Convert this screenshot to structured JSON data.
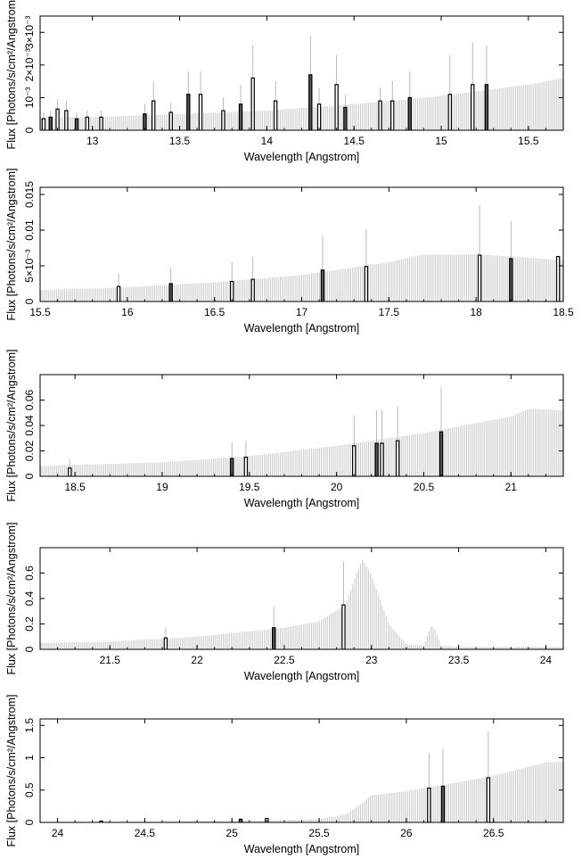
{
  "chart_data": [
    {
      "type": "bar",
      "xlabel": "Wavelength [Angstrom]",
      "ylabel": "Flux [Photons/s/cm²/Angstrom]",
      "xlim": [
        12.7,
        15.7
      ],
      "ylim": [
        0,
        0.0035
      ],
      "xticks": [
        13,
        13.5,
        14,
        14.5,
        15,
        15.5
      ],
      "xtick_labels": [
        "13",
        "13.5",
        "14",
        "14.5",
        "15",
        "15.5"
      ],
      "yticks": [
        0,
        0.001,
        0.002,
        0.003
      ],
      "ytick_labels": [
        "0",
        "10⁻³",
        "2×10⁻³",
        "3×10⁻³"
      ],
      "model": {
        "x": [
          12.7,
          13.0,
          13.5,
          14.0,
          14.5,
          15.0,
          15.5,
          15.7
        ],
        "y": [
          0.0004,
          0.0004,
          0.0005,
          0.0006,
          0.0008,
          0.00105,
          0.0014,
          0.0016
        ]
      },
      "observed": [
        {
          "x": 12.72,
          "y": 0.00035,
          "err": 0.0002
        },
        {
          "x": 12.76,
          "y": 0.0004,
          "err": 0.0002
        },
        {
          "x": 12.8,
          "y": 0.00065,
          "err": 0.0003
        },
        {
          "x": 12.85,
          "y": 0.0006,
          "err": 0.0003
        },
        {
          "x": 12.91,
          "y": 0.00035,
          "err": 0.0002
        },
        {
          "x": 12.97,
          "y": 0.0004,
          "err": 0.0002
        },
        {
          "x": 13.05,
          "y": 0.0004,
          "err": 0.0002
        },
        {
          "x": 13.3,
          "y": 0.0005,
          "err": 0.0003
        },
        {
          "x": 13.35,
          "y": 0.0009,
          "err": 0.0006
        },
        {
          "x": 13.45,
          "y": 0.00055,
          "err": 0.0003
        },
        {
          "x": 13.55,
          "y": 0.0011,
          "err": 0.0007
        },
        {
          "x": 13.62,
          "y": 0.0011,
          "err": 0.0007
        },
        {
          "x": 13.75,
          "y": 0.0006,
          "err": 0.0004
        },
        {
          "x": 13.85,
          "y": 0.0008,
          "err": 0.0006
        },
        {
          "x": 13.92,
          "y": 0.0016,
          "err": 0.001
        },
        {
          "x": 14.05,
          "y": 0.0009,
          "err": 0.0006
        },
        {
          "x": 14.25,
          "y": 0.0017,
          "err": 0.0012
        },
        {
          "x": 14.3,
          "y": 0.0008,
          "err": 0.0005
        },
        {
          "x": 14.4,
          "y": 0.0014,
          "err": 0.0009
        },
        {
          "x": 14.45,
          "y": 0.0007,
          "err": 0.0004
        },
        {
          "x": 14.65,
          "y": 0.0009,
          "err": 0.0004
        },
        {
          "x": 14.72,
          "y": 0.0009,
          "err": 0.0006
        },
        {
          "x": 14.82,
          "y": 0.001,
          "err": 0.0008
        },
        {
          "x": 15.05,
          "y": 0.0011,
          "err": 0.0012
        },
        {
          "x": 15.18,
          "y": 0.0014,
          "err": 0.0013
        },
        {
          "x": 15.26,
          "y": 0.0014,
          "err": 0.0012
        }
      ]
    },
    {
      "type": "bar",
      "xlabel": "Wavelength [Angstrom]",
      "ylabel": "Flux [Photons/s/cm²/Angstrom]",
      "xlim": [
        15.5,
        18.5
      ],
      "ylim": [
        0,
        0.016
      ],
      "xticks": [
        15.5,
        16,
        16.5,
        17,
        17.5,
        18,
        18.5
      ],
      "xtick_labels": [
        "15.5",
        "16",
        "16.5",
        "17",
        "17.5",
        "18",
        "18.5"
      ],
      "yticks": [
        0,
        0.005,
        0.01,
        0.015
      ],
      "ytick_labels": [
        "0",
        "5×10⁻³",
        "0.01",
        "0.015"
      ],
      "model": {
        "x": [
          15.5,
          16.0,
          16.5,
          17.0,
          17.5,
          17.7,
          18.0,
          18.2,
          18.5
        ],
        "y": [
          0.0016,
          0.002,
          0.0027,
          0.0037,
          0.0055,
          0.0066,
          0.0066,
          0.0063,
          0.0058
        ]
      },
      "observed": [
        {
          "x": 15.95,
          "y": 0.0021,
          "err": 0.0018
        },
        {
          "x": 16.25,
          "y": 0.0025,
          "err": 0.0023
        },
        {
          "x": 16.6,
          "y": 0.0028,
          "err": 0.0027
        },
        {
          "x": 16.72,
          "y": 0.0031,
          "err": 0.0032
        },
        {
          "x": 17.12,
          "y": 0.0044,
          "err": 0.0048
        },
        {
          "x": 17.37,
          "y": 0.0049,
          "err": 0.0053
        },
        {
          "x": 18.02,
          "y": 0.0065,
          "err": 0.007
        },
        {
          "x": 18.2,
          "y": 0.006,
          "err": 0.0053
        },
        {
          "x": 18.47,
          "y": 0.0063,
          "err": 0.0
        }
      ]
    },
    {
      "type": "bar",
      "xlabel": "Wavelength [Angstrom]",
      "ylabel": "Flux [Photons/s/cm²/Angstrom]",
      "xlim": [
        18.3,
        21.3
      ],
      "ylim": [
        0,
        0.08
      ],
      "xticks": [
        18.5,
        19,
        19.5,
        20,
        20.5,
        21
      ],
      "xtick_labels": [
        "18.5",
        "19",
        "19.5",
        "20",
        "20.5",
        "21"
      ],
      "yticks": [
        0,
        0.02,
        0.04,
        0.06
      ],
      "ytick_labels": [
        "0",
        "0.02",
        "0.04",
        "0.06"
      ],
      "model": {
        "x": [
          18.3,
          18.5,
          19.0,
          19.5,
          20.0,
          20.5,
          21.0,
          21.1,
          21.3
        ],
        "y": [
          0.008,
          0.009,
          0.011,
          0.016,
          0.024,
          0.034,
          0.047,
          0.053,
          0.052
        ]
      },
      "observed": [
        {
          "x": 18.47,
          "y": 0.0065,
          "err": 0.007
        },
        {
          "x": 19.4,
          "y": 0.014,
          "err": 0.013
        },
        {
          "x": 19.48,
          "y": 0.015,
          "err": 0.013
        },
        {
          "x": 20.1,
          "y": 0.024,
          "err": 0.024
        },
        {
          "x": 20.23,
          "y": 0.026,
          "err": 0.026
        },
        {
          "x": 20.26,
          "y": 0.026,
          "err": 0.026
        },
        {
          "x": 20.35,
          "y": 0.028,
          "err": 0.027
        },
        {
          "x": 20.6,
          "y": 0.035,
          "err": 0.035
        }
      ]
    },
    {
      "type": "bar",
      "xlabel": "Wavelength [Angstrom]",
      "ylabel": "Flux [Photons/s/cm²/Angstrom]",
      "xlim": [
        21.1,
        24.1
      ],
      "ylim": [
        0,
        0.8
      ],
      "xticks": [
        21.5,
        22,
        22.5,
        23,
        23.5,
        24
      ],
      "xtick_labels": [
        "21.5",
        "22",
        "22.5",
        "23",
        "23.5",
        "24"
      ],
      "yticks": [
        0,
        0.2,
        0.4,
        0.6
      ],
      "ytick_labels": [
        "0",
        "0.2",
        "0.4",
        "0.6"
      ],
      "model": {
        "x": [
          21.1,
          21.5,
          22.0,
          22.5,
          22.7,
          22.85,
          22.92,
          22.95,
          23.0,
          23.1,
          23.2,
          23.3,
          23.34,
          23.36,
          23.4,
          23.5,
          24.0,
          24.1
        ],
        "y": [
          0.05,
          0.06,
          0.1,
          0.17,
          0.22,
          0.35,
          0.62,
          0.71,
          0.58,
          0.2,
          0.04,
          0.03,
          0.18,
          0.17,
          0.03,
          0.02,
          0.02,
          0.02
        ]
      },
      "observed": [
        {
          "x": 21.82,
          "y": 0.09,
          "err": 0.08
        },
        {
          "x": 22.44,
          "y": 0.17,
          "err": 0.17
        },
        {
          "x": 22.84,
          "y": 0.35,
          "err": 0.34
        }
      ]
    },
    {
      "type": "bar",
      "xlabel": "Wavelength [Angstrom]",
      "ylabel": "Flux [Photons/s/cm²/Angstrom]",
      "xlim": [
        23.9,
        26.9
      ],
      "ylim": [
        0,
        1.6
      ],
      "xticks": [
        24,
        24.5,
        25,
        25.5,
        26,
        26.5
      ],
      "xtick_labels": [
        "24",
        "24.5",
        "25",
        "25.5",
        "26",
        "26.5"
      ],
      "yticks": [
        0,
        0.5,
        1,
        1.5
      ],
      "ytick_labels": [
        "0",
        "0.5",
        "1",
        "1.5"
      ],
      "model": {
        "x": [
          23.9,
          24.5,
          25.0,
          25.5,
          25.65,
          25.75,
          25.8,
          26.0,
          26.5,
          26.8,
          26.9
        ],
        "y": [
          0.01,
          0.01,
          0.02,
          0.05,
          0.12,
          0.3,
          0.42,
          0.48,
          0.72,
          0.93,
          0.94
        ]
      },
      "observed": [
        {
          "x": 24.25,
          "y": 0.02,
          "err": 0.0
        },
        {
          "x": 25.05,
          "y": 0.05,
          "err": 0.0
        },
        {
          "x": 25.2,
          "y": 0.06,
          "err": 0.0
        },
        {
          "x": 26.13,
          "y": 0.53,
          "err": 0.55
        },
        {
          "x": 26.21,
          "y": 0.56,
          "err": 0.58
        },
        {
          "x": 26.47,
          "y": 0.69,
          "err": 0.72
        }
      ]
    }
  ]
}
